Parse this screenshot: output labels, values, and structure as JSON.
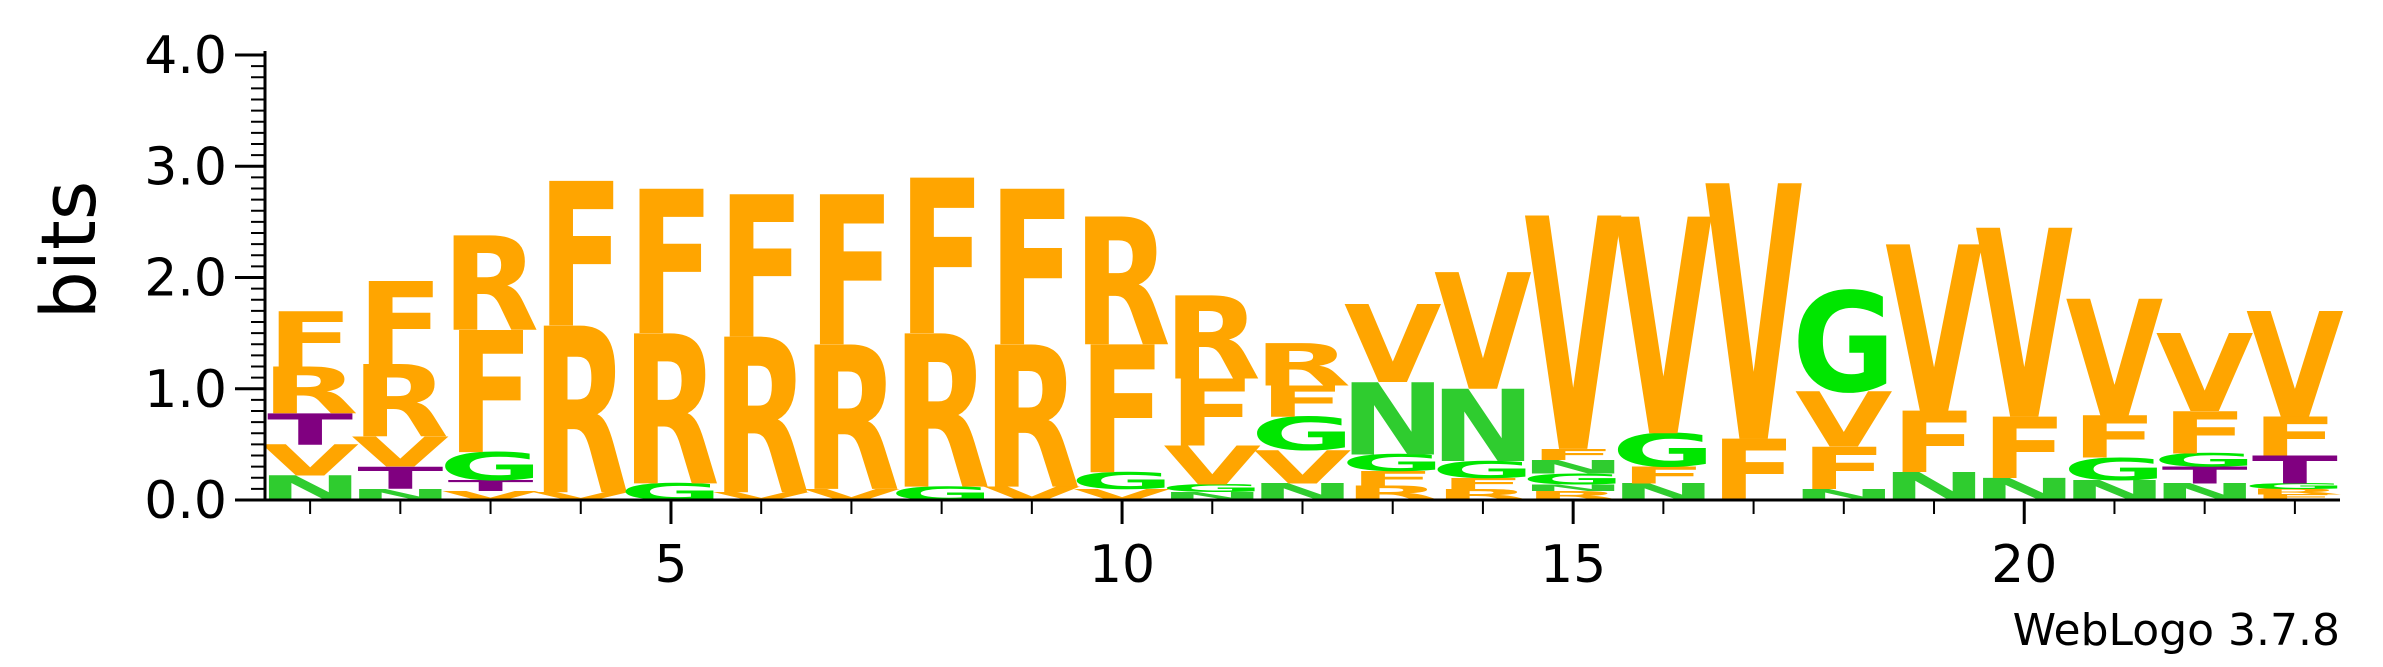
{
  "chart_data": {
    "type": "sequence-logo",
    "title": "",
    "xlabel": "",
    "ylabel": "bits",
    "ylim": [
      0,
      4.0
    ],
    "y_ticks": [
      "0.0",
      "1.0",
      "2.0",
      "3.0",
      "4.0"
    ],
    "x_tick_labels": [
      "5",
      "10",
      "15",
      "20"
    ],
    "x_tick_positions": [
      5,
      10,
      15,
      20
    ],
    "footer": "WebLogo 3.7.8",
    "colors": {
      "F": "#ffa500",
      "R": "#ffa500",
      "V": "#ffa500",
      "N": "#2fcc2f",
      "G": "#00e600",
      "T": "#800080"
    },
    "positions": [
      {
        "pos": 1,
        "stack": [
          {
            "l": "N",
            "h": 0.22
          },
          {
            "l": "V",
            "h": 0.28
          },
          {
            "l": "T",
            "h": 0.28
          },
          {
            "l": "R",
            "h": 0.42
          },
          {
            "l": "F",
            "h": 0.5
          }
        ]
      },
      {
        "pos": 2,
        "stack": [
          {
            "l": "N",
            "h": 0.1
          },
          {
            "l": "T",
            "h": 0.2
          },
          {
            "l": "V",
            "h": 0.27
          },
          {
            "l": "R",
            "h": 0.65
          },
          {
            "l": "F",
            "h": 0.75
          }
        ]
      },
      {
        "pos": 3,
        "stack": [
          {
            "l": "V",
            "h": 0.08
          },
          {
            "l": "T",
            "h": 0.1
          },
          {
            "l": "G",
            "h": 0.25
          },
          {
            "l": "F",
            "h": 1.1
          },
          {
            "l": "R",
            "h": 0.85
          }
        ]
      },
      {
        "pos": 4,
        "stack": [
          {
            "l": "V",
            "h": 0.07
          },
          {
            "l": "R",
            "h": 1.5
          },
          {
            "l": "F",
            "h": 1.3
          }
        ]
      },
      {
        "pos": 5,
        "stack": [
          {
            "l": "G",
            "h": 0.15
          },
          {
            "l": "R",
            "h": 1.35
          },
          {
            "l": "F",
            "h": 1.3
          }
        ]
      },
      {
        "pos": 6,
        "stack": [
          {
            "l": "V",
            "h": 0.07
          },
          {
            "l": "R",
            "h": 1.4
          },
          {
            "l": "F",
            "h": 1.28
          }
        ]
      },
      {
        "pos": 7,
        "stack": [
          {
            "l": "V",
            "h": 0.1
          },
          {
            "l": "R",
            "h": 1.3
          },
          {
            "l": "F",
            "h": 1.35
          }
        ]
      },
      {
        "pos": 8,
        "stack": [
          {
            "l": "G",
            "h": 0.12
          },
          {
            "l": "R",
            "h": 1.38
          },
          {
            "l": "F",
            "h": 1.4
          }
        ]
      },
      {
        "pos": 9,
        "stack": [
          {
            "l": "V",
            "h": 0.12
          },
          {
            "l": "R",
            "h": 1.28
          },
          {
            "l": "F",
            "h": 1.4
          }
        ]
      },
      {
        "pos": 10,
        "stack": [
          {
            "l": "V",
            "h": 0.1
          },
          {
            "l": "G",
            "h": 0.15
          },
          {
            "l": "F",
            "h": 1.15
          },
          {
            "l": "R",
            "h": 1.15
          }
        ]
      },
      {
        "pos": 11,
        "stack": [
          {
            "l": "N",
            "h": 0.07
          },
          {
            "l": "G",
            "h": 0.07
          },
          {
            "l": "V",
            "h": 0.35
          },
          {
            "l": "F",
            "h": 0.6
          },
          {
            "l": "R",
            "h": 0.75
          }
        ]
      },
      {
        "pos": 12,
        "stack": [
          {
            "l": "N",
            "h": 0.15
          },
          {
            "l": "V",
            "h": 0.3
          },
          {
            "l": "G",
            "h": 0.3
          },
          {
            "l": "F",
            "h": 0.28
          },
          {
            "l": "R",
            "h": 0.38
          }
        ]
      },
      {
        "pos": 13,
        "stack": [
          {
            "l": "R",
            "h": 0.13
          },
          {
            "l": "F",
            "h": 0.13
          },
          {
            "l": "G",
            "h": 0.15
          },
          {
            "l": "N",
            "h": 0.65
          },
          {
            "l": "V",
            "h": 0.7
          }
        ]
      },
      {
        "pos": 14,
        "stack": [
          {
            "l": "R",
            "h": 0.1
          },
          {
            "l": "F",
            "h": 0.1
          },
          {
            "l": "G",
            "h": 0.15
          },
          {
            "l": "N",
            "h": 0.65
          },
          {
            "l": "V",
            "h": 1.05
          }
        ]
      },
      {
        "pos": 15,
        "stack": [
          {
            "l": "R",
            "h": 0.08
          },
          {
            "l": "N",
            "h": 0.06
          },
          {
            "l": "G",
            "h": 0.1
          },
          {
            "l": "N",
            "h": 0.12
          },
          {
            "l": "F",
            "h": 0.1
          },
          {
            "l": "V",
            "h": 2.1
          }
        ]
      },
      {
        "pos": 16,
        "stack": [
          {
            "l": "N",
            "h": 0.15
          },
          {
            "l": "F",
            "h": 0.15
          },
          {
            "l": "G",
            "h": 0.3
          },
          {
            "l": "V",
            "h": 1.95
          }
        ]
      },
      {
        "pos": 17,
        "stack": [
          {
            "l": "F",
            "h": 0.55
          },
          {
            "l": "V",
            "h": 2.3
          }
        ]
      },
      {
        "pos": 18,
        "stack": [
          {
            "l": "N",
            "h": 0.1
          },
          {
            "l": "F",
            "h": 0.38
          },
          {
            "l": "V",
            "h": 0.5
          },
          {
            "l": "G",
            "h": 0.9
          }
        ]
      },
      {
        "pos": 19,
        "stack": [
          {
            "l": "N",
            "h": 0.25
          },
          {
            "l": "F",
            "h": 0.55
          },
          {
            "l": "V",
            "h": 1.5
          }
        ]
      },
      {
        "pos": 20,
        "stack": [
          {
            "l": "N",
            "h": 0.2
          },
          {
            "l": "F",
            "h": 0.55
          },
          {
            "l": "V",
            "h": 1.7
          }
        ]
      },
      {
        "pos": 21,
        "stack": [
          {
            "l": "N",
            "h": 0.18
          },
          {
            "l": "G",
            "h": 0.2
          },
          {
            "l": "F",
            "h": 0.38
          },
          {
            "l": "V",
            "h": 1.05
          }
        ]
      },
      {
        "pos": 22,
        "stack": [
          {
            "l": "N",
            "h": 0.15
          },
          {
            "l": "T",
            "h": 0.15
          },
          {
            "l": "G",
            "h": 0.12
          },
          {
            "l": "F",
            "h": 0.38
          },
          {
            "l": "V",
            "h": 0.7
          }
        ]
      },
      {
        "pos": 23,
        "stack": [
          {
            "l": "F",
            "h": 0.05
          },
          {
            "l": "R",
            "h": 0.05
          },
          {
            "l": "G",
            "h": 0.05
          },
          {
            "l": "T",
            "h": 0.25
          },
          {
            "l": "F",
            "h": 0.35
          },
          {
            "l": "V",
            "h": 0.95
          }
        ]
      }
    ]
  }
}
